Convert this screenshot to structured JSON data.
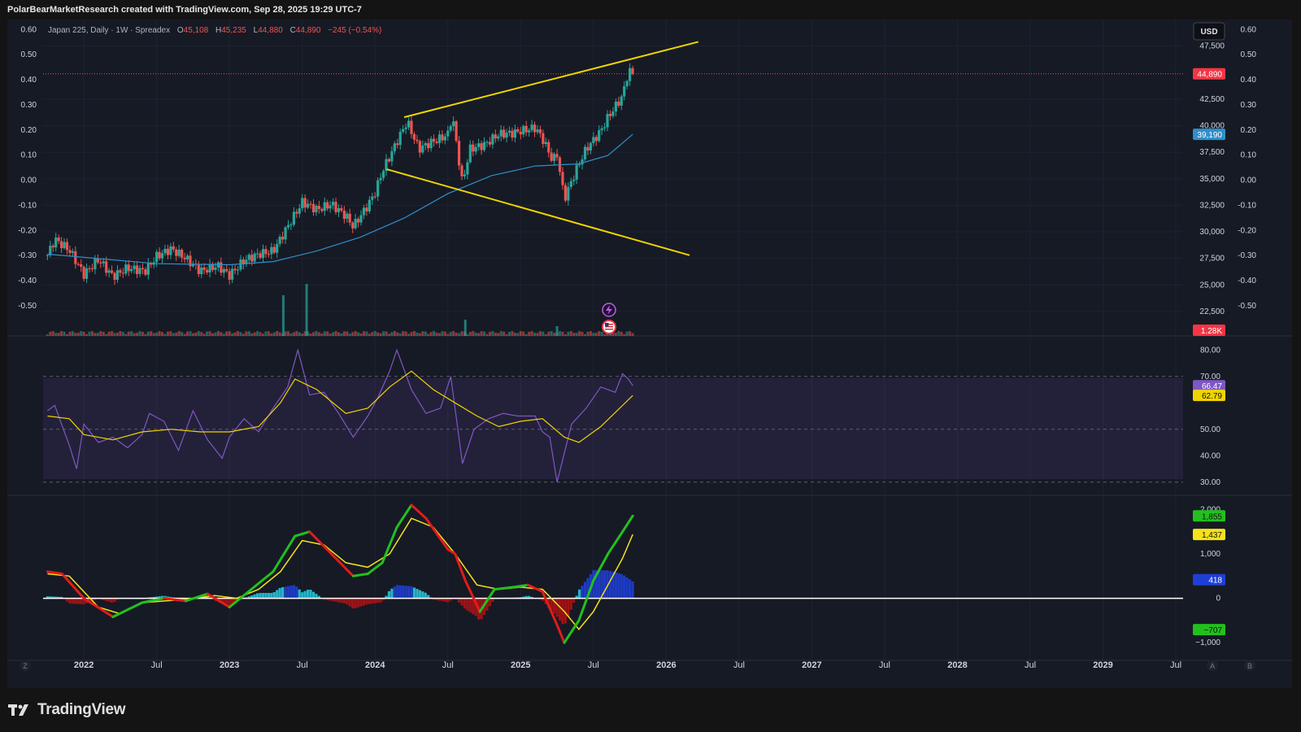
{
  "header": {
    "attribution": "PolarBearMarketResearch created with TradingView.com, Sep 28, 2025 19:29 UTC-7"
  },
  "legend": {
    "symbol": "Japan 225, Daily · 1W · Spreadex",
    "open_label": "O",
    "open": "45,108",
    "high_label": "H",
    "high": "45,235",
    "low_label": "L",
    "low": "44,880",
    "close_label": "C",
    "close": "44,890",
    "change": "−245 (−0.54%)"
  },
  "currency_button": "USD",
  "footer": {
    "brand": "TradingView"
  },
  "colors": {
    "background": "#161a25",
    "up": "#26a69a",
    "down": "#ef5350",
    "trendline": "#f0d400",
    "ma": "#2f8fc9",
    "rsi": "#7e57c2",
    "rsi_ma": "#f0d400",
    "macd_up": "#22c01e",
    "macd_down": "#e11c1c",
    "signal": "#f5e21b",
    "hist_pos": "#26c6da",
    "hist_pos_strong": "#1e3fd6",
    "hist_neg": "#cc1010",
    "price_badge": "#f23645"
  },
  "chart_data": [
    {
      "type": "candlestick",
      "title": "Japan 225, Daily · 1W · Spreadex",
      "x_axis": {
        "ticks": [
          "2022",
          "Jul",
          "2023",
          "Jul",
          "2024",
          "Jul",
          "2025",
          "Jul",
          "2026",
          "Jul",
          "2027",
          "Jul",
          "2028",
          "Jul",
          "2029",
          "Jul"
        ],
        "tick_dates": [
          2022.0,
          2022.5,
          2023.0,
          2023.5,
          2024.0,
          2024.5,
          2025.0,
          2025.5,
          2026.0,
          2026.5,
          2027.0,
          2027.5,
          2028.0,
          2028.5,
          2029.0,
          2029.5
        ],
        "range": [
          2021.72,
          2029.55
        ]
      },
      "left_axis": {
        "ticks": [
          "0.60",
          "0.50",
          "0.40",
          "0.30",
          "0.20",
          "0.10",
          "0.00",
          "-0.10",
          "-0.20",
          "-0.30",
          "-0.40",
          "-0.50"
        ],
        "tick_values": [
          0.6,
          0.5,
          0.4,
          0.3,
          0.2,
          0.1,
          0.0,
          -0.1,
          -0.2,
          -0.3,
          -0.4,
          -0.5
        ]
      },
      "right_axis": {
        "ticks": [
          "47,500",
          "42,500",
          "40,000",
          "37,500",
          "35,000",
          "32,500",
          "30,000",
          "27,500",
          "25,000",
          "22,500"
        ],
        "tick_values": [
          47500,
          42500,
          40000,
          37500,
          35000,
          32500,
          30000,
          27500,
          25000,
          22500
        ]
      },
      "right_axis2": {
        "ticks": [
          "0.60",
          "0.50",
          "0.40",
          "0.30",
          "0.20",
          "0.10",
          "0.00",
          "-0.10",
          "-0.20",
          "-0.30",
          "-0.40",
          "-0.50"
        ],
        "tick_values": [
          0.6,
          0.5,
          0.4,
          0.3,
          0.2,
          0.1,
          0.0,
          -0.1,
          -0.2,
          -0.3,
          -0.4,
          -0.5
        ]
      },
      "ylim": [
        20200,
        50000
      ],
      "price_path": [
        [
          2021.75,
          27800
        ],
        [
          2021.8,
          29300
        ],
        [
          2021.9,
          28300
        ],
        [
          2022.0,
          26000
        ],
        [
          2022.1,
          27400
        ],
        [
          2022.2,
          25800
        ],
        [
          2022.3,
          26600
        ],
        [
          2022.42,
          26300
        ],
        [
          2022.5,
          27700
        ],
        [
          2022.6,
          28400
        ],
        [
          2022.7,
          27500
        ],
        [
          2022.8,
          26300
        ],
        [
          2022.92,
          26800
        ],
        [
          2023.0,
          25900
        ],
        [
          2023.1,
          27300
        ],
        [
          2023.2,
          27900
        ],
        [
          2023.3,
          28200
        ],
        [
          2023.4,
          30500
        ],
        [
          2023.5,
          32800
        ],
        [
          2023.6,
          32100
        ],
        [
          2023.7,
          32600
        ],
        [
          2023.8,
          31500
        ],
        [
          2023.85,
          30500
        ],
        [
          2023.95,
          32500
        ],
        [
          2024.0,
          33700
        ],
        [
          2024.05,
          35700
        ],
        [
          2024.15,
          38500
        ],
        [
          2024.22,
          40400
        ],
        [
          2024.3,
          37800
        ],
        [
          2024.38,
          38400
        ],
        [
          2024.45,
          38800
        ],
        [
          2024.5,
          39200
        ],
        [
          2024.53,
          41000
        ],
        [
          2024.6,
          34500
        ],
        [
          2024.65,
          37800
        ],
        [
          2024.75,
          38200
        ],
        [
          2024.85,
          39200
        ],
        [
          2024.95,
          39300
        ],
        [
          2025.0,
          39500
        ],
        [
          2025.1,
          39800
        ],
        [
          2025.15,
          38800
        ],
        [
          2025.22,
          36700
        ],
        [
          2025.25,
          37300
        ],
        [
          2025.3,
          33100
        ],
        [
          2025.38,
          35800
        ],
        [
          2025.45,
          37800
        ],
        [
          2025.55,
          39500
        ],
        [
          2025.6,
          40800
        ],
        [
          2025.65,
          41800
        ],
        [
          2025.7,
          42800
        ],
        [
          2025.73,
          44600
        ],
        [
          2025.75,
          45100
        ],
        [
          2025.77,
          44890
        ]
      ],
      "last_price": 44890,
      "price_line_label": "44,890",
      "ma_label": "39,190",
      "ma_path": [
        [
          2021.75,
          27900
        ],
        [
          2022.0,
          27600
        ],
        [
          2022.5,
          27000
        ],
        [
          2023.0,
          26900
        ],
        [
          2023.3,
          27200
        ],
        [
          2023.6,
          28200
        ],
        [
          2023.9,
          29500
        ],
        [
          2024.2,
          31300
        ],
        [
          2024.5,
          33600
        ],
        [
          2024.8,
          35300
        ],
        [
          2025.1,
          36200
        ],
        [
          2025.4,
          36400
        ],
        [
          2025.6,
          37200
        ],
        [
          2025.77,
          39190
        ]
      ],
      "trendlines": [
        {
          "name": "upper-resistance",
          "from": [
            2024.2,
            40800
          ],
          "to": [
            2026.22,
            47900
          ]
        },
        {
          "name": "lower-support",
          "from": [
            2024.08,
            35900
          ],
          "to": [
            2026.16,
            27800
          ]
        }
      ],
      "volume_label": "1.28K",
      "volume_spikes": [
        {
          "x": 2023.37,
          "v": 25
        },
        {
          "x": 2023.53,
          "v": 32
        },
        {
          "x": 2024.62,
          "v": 10
        },
        {
          "x": 2025.25,
          "v": 6
        }
      ],
      "event_icons": [
        "lightning-icon",
        "us-flag-icon"
      ],
      "grid": true
    },
    {
      "type": "line",
      "title": "RSI",
      "y_axis": {
        "ticks": [
          "80.00",
          "70.00",
          "50.00",
          "40.00",
          "30.00"
        ],
        "tick_values": [
          80,
          70,
          50,
          40,
          30
        ]
      },
      "ylim": [
        25,
        85
      ],
      "band": [
        30,
        70
      ],
      "series": [
        {
          "values": [
            [
              2021.75,
              57
            ],
            [
              2021.8,
              59
            ],
            [
              2021.9,
              44
            ],
            [
              2021.95,
              35
            ],
            [
              2022.0,
              52
            ],
            [
              2022.1,
              45
            ],
            [
              2022.2,
              47
            ],
            [
              2022.3,
              43
            ],
            [
              2022.4,
              48
            ],
            [
              2022.45,
              56
            ],
            [
              2022.55,
              53
            ],
            [
              2022.65,
              42
            ],
            [
              2022.75,
              57
            ],
            [
              2022.85,
              46
            ],
            [
              2022.95,
              39
            ],
            [
              2023.0,
              47
            ],
            [
              2023.1,
              54
            ],
            [
              2023.2,
              49
            ],
            [
              2023.3,
              58
            ],
            [
              2023.4,
              66
            ],
            [
              2023.47,
              80
            ],
            [
              2023.55,
              63
            ],
            [
              2023.65,
              64
            ],
            [
              2023.75,
              56
            ],
            [
              2023.85,
              47
            ],
            [
              2023.95,
              55
            ],
            [
              2024.02,
              62
            ],
            [
              2024.1,
              72
            ],
            [
              2024.15,
              80
            ],
            [
              2024.25,
              65
            ],
            [
              2024.35,
              56
            ],
            [
              2024.45,
              58
            ],
            [
              2024.52,
              70
            ],
            [
              2024.6,
              37
            ],
            [
              2024.68,
              50
            ],
            [
              2024.78,
              54
            ],
            [
              2024.88,
              56
            ],
            [
              2024.98,
              55
            ],
            [
              2025.1,
              55
            ],
            [
              2025.15,
              49
            ],
            [
              2025.2,
              47
            ],
            [
              2025.25,
              30
            ],
            [
              2025.35,
              52
            ],
            [
              2025.45,
              58
            ],
            [
              2025.55,
              66
            ],
            [
              2025.65,
              64
            ],
            [
              2025.7,
              71
            ],
            [
              2025.74,
              69
            ],
            [
              2025.77,
              66.47
            ]
          ]
        },
        {
          "values": [
            [
              2021.75,
              55
            ],
            [
              2021.9,
              54
            ],
            [
              2022.0,
              48
            ],
            [
              2022.2,
              46
            ],
            [
              2022.4,
              49
            ],
            [
              2022.6,
              50
            ],
            [
              2022.8,
              49
            ],
            [
              2023.0,
              49
            ],
            [
              2023.2,
              51
            ],
            [
              2023.35,
              60
            ],
            [
              2023.45,
              69
            ],
            [
              2023.6,
              65
            ],
            [
              2023.8,
              56
            ],
            [
              2023.95,
              58
            ],
            [
              2024.1,
              66
            ],
            [
              2024.25,
              72
            ],
            [
              2024.4,
              65
            ],
            [
              2024.55,
              60
            ],
            [
              2024.7,
              55
            ],
            [
              2024.85,
              51
            ],
            [
              2025.0,
              53
            ],
            [
              2025.15,
              54
            ],
            [
              2025.3,
              47
            ],
            [
              2025.4,
              45
            ],
            [
              2025.55,
              51
            ],
            [
              2025.7,
              59
            ],
            [
              2025.77,
              62.79
            ]
          ]
        }
      ],
      "labels": [
        "66.47",
        "62.79"
      ]
    },
    {
      "type": "line",
      "title": "MACD",
      "y_axis": {
        "ticks": [
          "2,000",
          "1,000",
          "0",
          "−1,000"
        ],
        "tick_values": [
          2000,
          1000,
          0,
          -1000
        ]
      },
      "ylim": [
        -1400,
        2300
      ],
      "series": [
        {
          "values": [
            [
              2021.75,
              600
            ],
            [
              2021.85,
              550
            ],
            [
              2022.0,
              0
            ],
            [
              2022.2,
              -420
            ],
            [
              2022.4,
              -100
            ],
            [
              2022.55,
              0
            ],
            [
              2022.7,
              -60
            ],
            [
              2022.85,
              100
            ],
            [
              2023.0,
              -200
            ],
            [
              2023.15,
              200
            ],
            [
              2023.3,
              600
            ],
            [
              2023.45,
              1400
            ],
            [
              2023.55,
              1500
            ],
            [
              2023.7,
              1000
            ],
            [
              2023.85,
              500
            ],
            [
              2023.95,
              550
            ],
            [
              2024.05,
              800
            ],
            [
              2024.15,
              1600
            ],
            [
              2024.25,
              2100
            ],
            [
              2024.35,
              1800
            ],
            [
              2024.5,
              1100
            ],
            [
              2024.55,
              1000
            ],
            [
              2024.62,
              400
            ],
            [
              2024.72,
              -300
            ],
            [
              2024.82,
              200
            ],
            [
              2024.95,
              250
            ],
            [
              2025.05,
              300
            ],
            [
              2025.15,
              150
            ],
            [
              2025.25,
              -600
            ],
            [
              2025.3,
              -1000
            ],
            [
              2025.4,
              -500
            ],
            [
              2025.5,
              400
            ],
            [
              2025.6,
              1000
            ],
            [
              2025.7,
              1500
            ],
            [
              2025.77,
              1855
            ]
          ]
        },
        {
          "values": [
            [
              2021.75,
              550
            ],
            [
              2021.9,
              500
            ],
            [
              2022.1,
              -200
            ],
            [
              2022.25,
              -350
            ],
            [
              2022.4,
              -100
            ],
            [
              2022.6,
              -50
            ],
            [
              2022.75,
              0
            ],
            [
              2022.9,
              60
            ],
            [
              2023.05,
              0
            ],
            [
              2023.2,
              200
            ],
            [
              2023.35,
              600
            ],
            [
              2023.5,
              1300
            ],
            [
              2023.65,
              1200
            ],
            [
              2023.8,
              800
            ],
            [
              2023.95,
              700
            ],
            [
              2024.1,
              1000
            ],
            [
              2024.25,
              1800
            ],
            [
              2024.4,
              1600
            ],
            [
              2024.55,
              1000
            ],
            [
              2024.7,
              300
            ],
            [
              2024.85,
              200
            ],
            [
              2025.0,
              250
            ],
            [
              2025.15,
              200
            ],
            [
              2025.3,
              -300
            ],
            [
              2025.4,
              -700
            ],
            [
              2025.5,
              -300
            ],
            [
              2025.6,
              300
            ],
            [
              2025.7,
              900
            ],
            [
              2025.77,
              1437
            ]
          ]
        }
      ],
      "histogram_label": "418",
      "low_label": "−707",
      "labels": [
        "1,855",
        "1,437"
      ]
    }
  ]
}
